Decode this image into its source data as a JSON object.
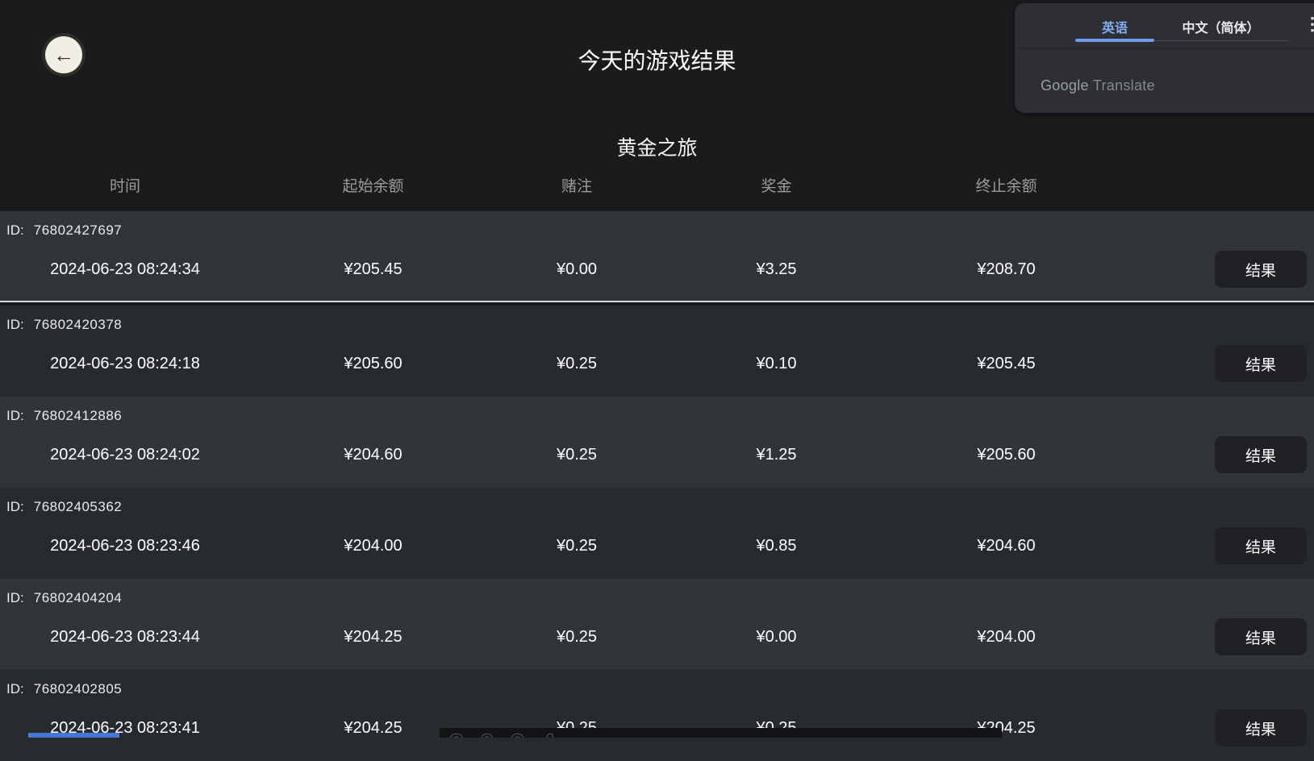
{
  "page": {
    "title": "今天的游戏结果",
    "game_title": "黄金之旅",
    "back_icon": "←"
  },
  "translate_widget": {
    "tabs": [
      {
        "label": "英语",
        "active": true
      },
      {
        "label": "中文（简体）",
        "active": false
      }
    ],
    "brand_google": "Google",
    "brand_translate": "Translate",
    "more_icon": "⋮",
    "accent_color": "#85acf2"
  },
  "table": {
    "headers": [
      "时间",
      "起始余额",
      "赌注",
      "奖金",
      "终止余额"
    ],
    "id_prefix": "ID:",
    "result_button_label": "结果",
    "rows": [
      {
        "id": "76802427697",
        "time": "2024-06-23 08:24:34",
        "start_balance": "¥205.45",
        "bet": "¥0.00",
        "prize": "¥3.25",
        "end_balance": "¥208.70"
      },
      {
        "id": "76802420378",
        "time": "2024-06-23 08:24:18",
        "start_balance": "¥205.60",
        "bet": "¥0.25",
        "prize": "¥0.10",
        "end_balance": "¥205.45"
      },
      {
        "id": "76802412886",
        "time": "2024-06-23 08:24:02",
        "start_balance": "¥204.60",
        "bet": "¥0.25",
        "prize": "¥1.25",
        "end_balance": "¥205.60"
      },
      {
        "id": "76802405362",
        "time": "2024-06-23 08:23:46",
        "start_balance": "¥204.00",
        "bet": "¥0.25",
        "prize": "¥0.85",
        "end_balance": "¥204.60"
      },
      {
        "id": "76802404204",
        "time": "2024-06-23 08:23:44",
        "start_balance": "¥204.25",
        "bet": "¥0.25",
        "prize": "¥0.00",
        "end_balance": "¥204.00"
      },
      {
        "id": "76802402805",
        "time": "2024-06-23 08:23:41",
        "start_balance": "¥204.25",
        "bet": "¥0.25",
        "prize": "¥0.25",
        "end_balance": "¥204.25"
      }
    ]
  },
  "bottom_overlay": {
    "partial_text": "2024"
  },
  "colors": {
    "page_background": "#1a1b1d",
    "row_light": "#31353a",
    "row_dark": "#282b2e",
    "row_divider_light": "#d6dadd",
    "button_background": "#1f2124",
    "header_text": "#9b9b9b",
    "translate_panel": "#2d2f32",
    "translate_accent": "#85acf2",
    "back_button_fill": "#f1eee3",
    "bottom_strip_blue": "#4576d8"
  }
}
